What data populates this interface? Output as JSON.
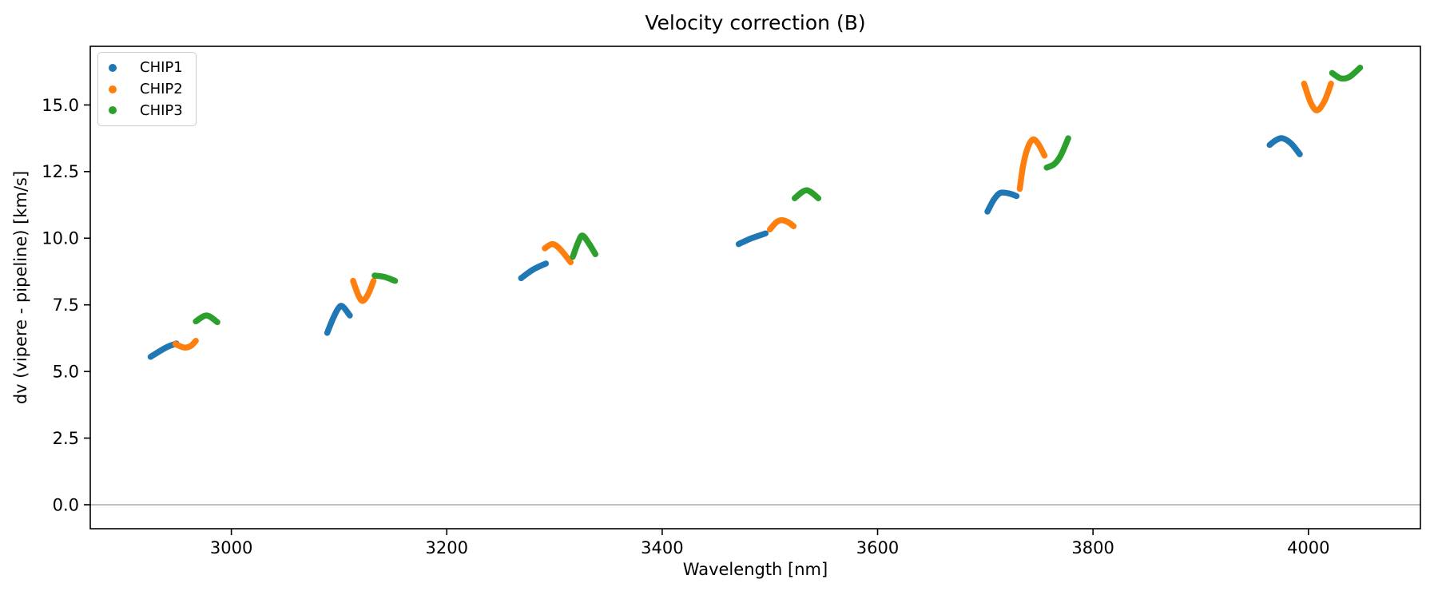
{
  "chart_data": {
    "type": "scatter",
    "title": "Velocity correction (B)",
    "xlabel": "Wavelength [nm]",
    "ylabel": "dv (vipere - pipeline) [km/s]",
    "xlim": [
      2869,
      4104
    ],
    "ylim": [
      -0.9,
      17.2
    ],
    "xticks": [
      3000,
      3200,
      3400,
      3600,
      3800,
      4000
    ],
    "yticks": [
      0.0,
      2.5,
      5.0,
      7.5,
      10.0,
      12.5,
      15.0
    ],
    "grid": false,
    "zero_line": {
      "y": 0.0,
      "color": "#999999"
    },
    "legend": {
      "position": "upper left",
      "entries": [
        "CHIP1",
        "CHIP2",
        "CHIP3"
      ]
    },
    "series": [
      {
        "name": "CHIP1",
        "color": "#1f77b4",
        "segments": [
          [
            [
              2925,
              5.55
            ],
            [
              2933,
              5.75
            ],
            [
              2941,
              5.93
            ],
            [
              2949,
              6.05
            ]
          ],
          [
            [
              3089,
              6.45
            ],
            [
              3094,
              6.95
            ],
            [
              3099,
              7.35
            ],
            [
              3103,
              7.45
            ],
            [
              3110,
              7.1
            ]
          ],
          [
            [
              3269,
              8.5
            ],
            [
              3280,
              8.82
            ],
            [
              3292,
              9.05
            ]
          ],
          [
            [
              3471,
              9.78
            ],
            [
              3483,
              10.0
            ],
            [
              3496,
              10.18
            ]
          ],
          [
            [
              3702,
              11.0
            ],
            [
              3708,
              11.45
            ],
            [
              3714,
              11.7
            ],
            [
              3722,
              11.68
            ],
            [
              3729,
              11.58
            ]
          ],
          [
            [
              3964,
              13.5
            ],
            [
              3970,
              13.68
            ],
            [
              3976,
              13.75
            ],
            [
              3984,
              13.55
            ],
            [
              3992,
              13.15
            ]
          ]
        ]
      },
      {
        "name": "CHIP2",
        "color": "#ff7f0e",
        "segments": [
          [
            [
              2948,
              6.03
            ],
            [
              2956,
              5.9
            ],
            [
              2962,
              5.95
            ],
            [
              2967,
              6.15
            ]
          ],
          [
            [
              3113,
              8.4
            ],
            [
              3118,
              7.85
            ],
            [
              3122,
              7.65
            ],
            [
              3127,
              7.9
            ],
            [
              3132,
              8.4
            ]
          ],
          [
            [
              3291,
              9.62
            ],
            [
              3298,
              9.78
            ],
            [
              3305,
              9.6
            ],
            [
              3315,
              9.1
            ]
          ],
          [
            [
              3500,
              10.33
            ],
            [
              3506,
              10.6
            ],
            [
              3511,
              10.68
            ],
            [
              3517,
              10.6
            ],
            [
              3522,
              10.45
            ]
          ],
          [
            [
              3732,
              11.85
            ],
            [
              3735,
              12.7
            ],
            [
              3739,
              13.35
            ],
            [
              3744,
              13.7
            ],
            [
              3749,
              13.55
            ],
            [
              3755,
              13.1
            ]
          ],
          [
            [
              3996,
              15.8
            ],
            [
              4002,
              15.1
            ],
            [
              4008,
              14.8
            ],
            [
              4015,
              15.15
            ],
            [
              4021,
              15.8
            ]
          ]
        ]
      },
      {
        "name": "CHIP3",
        "color": "#2ca02c",
        "segments": [
          [
            [
              2967,
              6.88
            ],
            [
              2977,
              7.1
            ],
            [
              2987,
              6.85
            ]
          ],
          [
            [
              3133,
              8.6
            ],
            [
              3142,
              8.55
            ],
            [
              3152,
              8.4
            ]
          ],
          [
            [
              3317,
              9.3
            ],
            [
              3322,
              9.85
            ],
            [
              3326,
              10.1
            ],
            [
              3332,
              9.8
            ],
            [
              3338,
              9.4
            ]
          ],
          [
            [
              3523,
              11.5
            ],
            [
              3534,
              11.8
            ],
            [
              3545,
              11.5
            ]
          ],
          [
            [
              3757,
              12.65
            ],
            [
              3764,
              12.78
            ],
            [
              3770,
              13.1
            ],
            [
              3777,
              13.75
            ]
          ],
          [
            [
              4022,
              16.2
            ],
            [
              4030,
              16.0
            ],
            [
              4038,
              16.05
            ],
            [
              4048,
              16.4
            ]
          ]
        ]
      }
    ]
  }
}
